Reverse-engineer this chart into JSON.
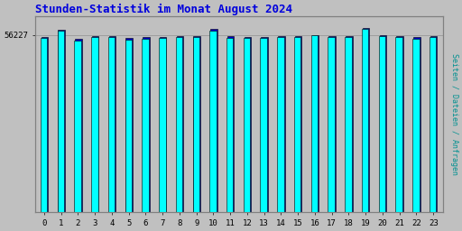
{
  "title": "Stunden-Statistik im Monat August 2024",
  "title_color": "#0000dd",
  "ylabel": "Seiten / Dateien / Anfragen",
  "ylabel_color": "#009090",
  "background_color": "#c0c0c0",
  "plot_background_color": "#c0c0c0",
  "bar_color_cyan": "#00ffff",
  "bar_color_blue": "#0000cc",
  "bar_color_green": "#008000",
  "bar_edge_color": "#000000",
  "categories": [
    0,
    1,
    2,
    3,
    4,
    5,
    6,
    7,
    8,
    9,
    10,
    11,
    12,
    13,
    14,
    15,
    16,
    17,
    18,
    19,
    20,
    21,
    22,
    23
  ],
  "ytick_label": "56227",
  "ymax": 62000,
  "ymin": 0,
  "ytick_pos": 56227,
  "values_blue": [
    55500,
    57800,
    55000,
    55800,
    55700,
    55200,
    55400,
    55500,
    55700,
    55800,
    58000,
    55700,
    55500,
    55500,
    55800,
    55900,
    56200,
    55700,
    55700,
    58500,
    56000,
    55800,
    55400,
    55700
  ],
  "values_cyan": [
    55200,
    57500,
    54500,
    55500,
    55400,
    54800,
    55100,
    55200,
    55400,
    55500,
    57500,
    55300,
    55200,
    55200,
    55600,
    55600,
    56000,
    55400,
    55400,
    58000,
    55700,
    55500,
    55100,
    55400
  ],
  "bar_width": 0.4,
  "bar_gap": 0.05
}
